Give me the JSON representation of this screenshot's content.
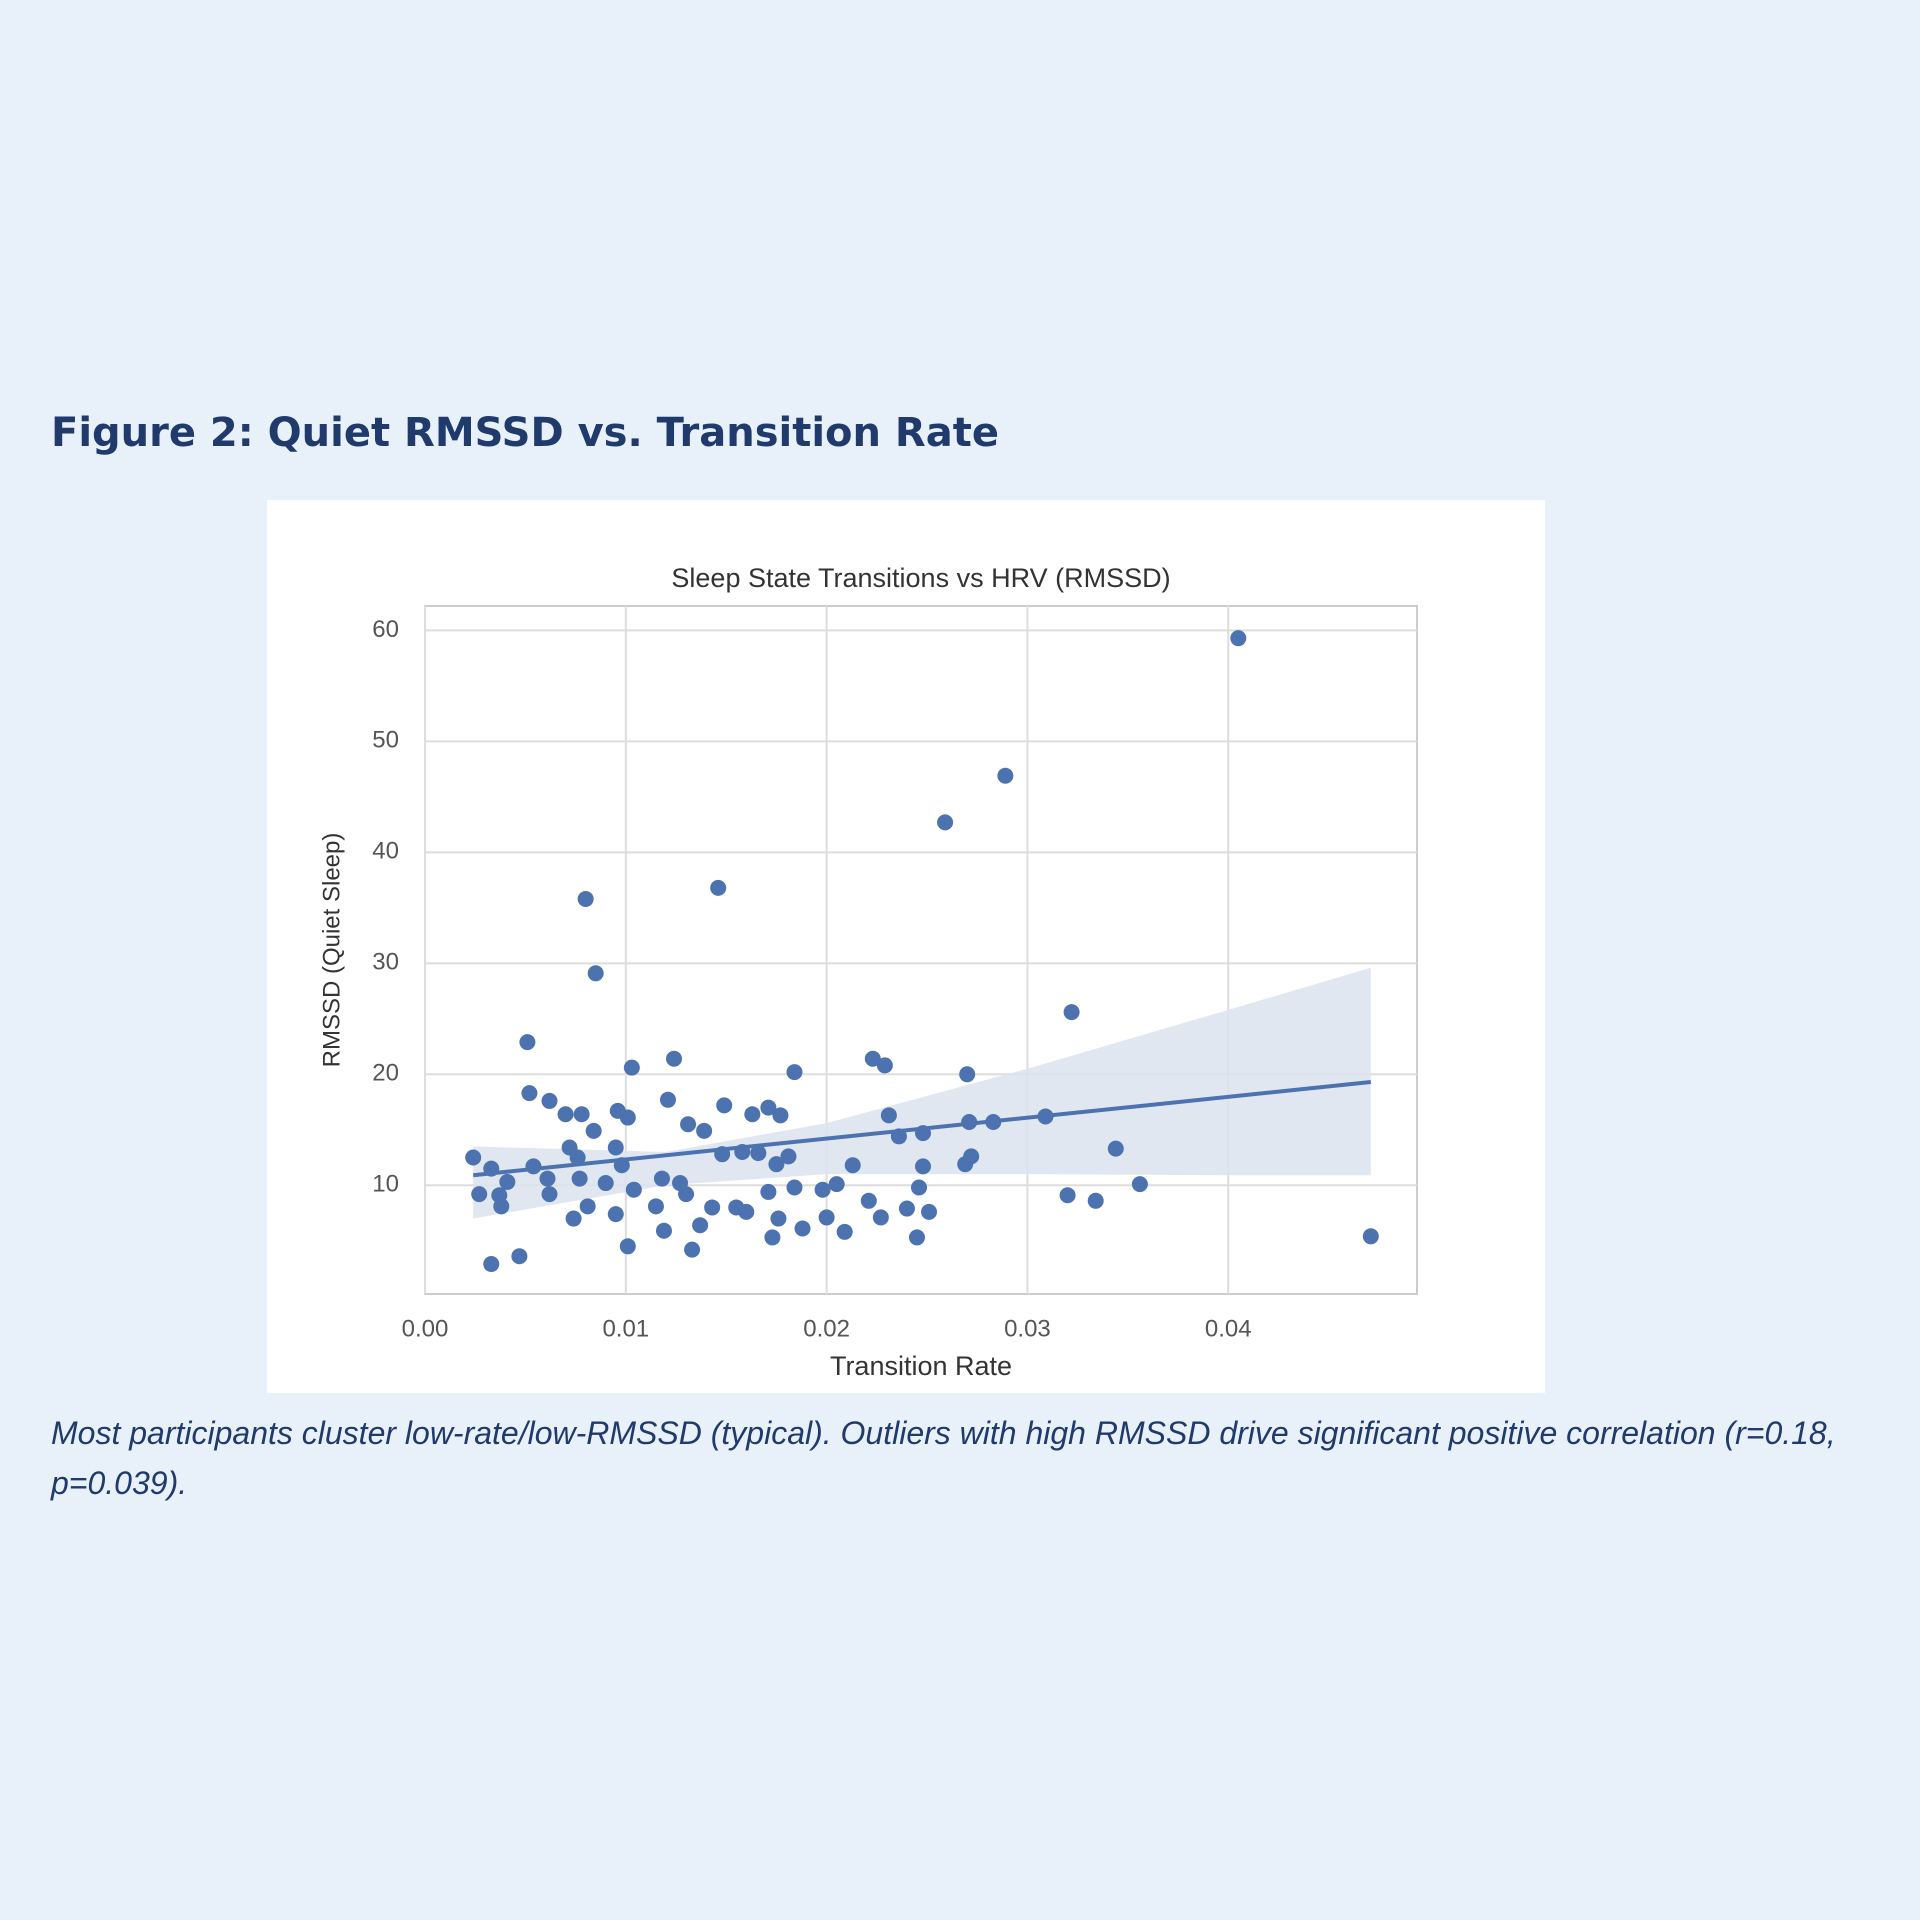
{
  "heading": "Figure 2: Quiet RMSSD vs. Transition Rate",
  "caption": "Most participants cluster low-rate/low-RMSSD (typical). Outliers with high RMSSD drive significant positive correlation (r=0.18, p=0.039).",
  "chart_data": {
    "type": "scatter",
    "title": "Sleep State Transitions vs HRV (RMSSD)",
    "x_label": "Transition Rate",
    "y_label": "RMSSD (Quiet Sleep)",
    "color": "#4c72b0",
    "grid": true,
    "xlim": [
      0,
      0.0494
    ],
    "ylim": [
      0.2,
      62.2
    ],
    "xticks": [
      {
        "value": 0,
        "label": "0.00"
      },
      0.01,
      0.02,
      0.03,
      0.04
    ],
    "yticks": [
      10,
      20,
      30,
      40,
      50,
      60
    ],
    "x": [
      0.0405,
      0.0289,
      0.0259,
      0.0146,
      0.008,
      0.0085,
      0.0322,
      0.0051,
      0.0124,
      0.0223,
      0.0229,
      0.0103,
      0.0184,
      0.027,
      0.0052,
      0.0062,
      0.0121,
      0.0149,
      0.007,
      0.0078,
      0.0096,
      0.0101,
      0.0163,
      0.0171,
      0.0177,
      0.0231,
      0.0271,
      0.0283,
      0.0309,
      0.0084,
      0.0131,
      0.0139,
      0.0236,
      0.0248,
      0.0072,
      0.0095,
      0.0344,
      0.0024,
      0.0076,
      0.0148,
      0.0158,
      0.0166,
      0.0181,
      0.0272,
      0.0033,
      0.0054,
      0.0098,
      0.0175,
      0.0213,
      0.0248,
      0.0269,
      0.0041,
      0.0061,
      0.0077,
      0.009,
      0.0118,
      0.0127,
      0.0205,
      0.0246,
      0.0356,
      0.0027,
      0.0037,
      0.0062,
      0.0104,
      0.013,
      0.0171,
      0.0184,
      0.0198,
      0.032,
      0.0334,
      0.0038,
      0.0081,
      0.0115,
      0.0143,
      0.0155,
      0.0221,
      0.024,
      0.0251,
      0.0074,
      0.0095,
      0.016,
      0.0176,
      0.02,
      0.0227,
      0.0119,
      0.0137,
      0.0188,
      0.0209,
      0.0245,
      0.0173,
      0.0471,
      0.0101,
      0.0133,
      0.0047,
      0.0033
    ],
    "y": [
      59.3,
      46.9,
      42.7,
      36.8,
      35.8,
      29.1,
      25.6,
      22.9,
      21.4,
      21.4,
      20.8,
      20.6,
      20.2,
      20.0,
      18.3,
      17.6,
      17.7,
      17.2,
      16.4,
      16.4,
      16.7,
      16.1,
      16.4,
      17.0,
      16.3,
      16.3,
      15.7,
      15.7,
      16.2,
      14.9,
      15.5,
      14.9,
      14.4,
      14.7,
      13.4,
      13.4,
      13.3,
      12.5,
      12.5,
      12.8,
      13.0,
      12.9,
      12.6,
      12.6,
      11.5,
      11.7,
      11.8,
      11.9,
      11.8,
      11.7,
      11.9,
      10.3,
      10.6,
      10.6,
      10.2,
      10.6,
      10.2,
      10.1,
      9.8,
      10.1,
      9.2,
      9.1,
      9.2,
      9.6,
      9.2,
      9.4,
      9.8,
      9.6,
      9.1,
      8.6,
      8.1,
      8.1,
      8.1,
      8.0,
      8.0,
      8.6,
      7.9,
      7.6,
      7.0,
      7.4,
      7.6,
      7.0,
      7.1,
      7.1,
      5.9,
      6.4,
      6.1,
      5.8,
      5.3,
      5.3,
      5.4,
      4.5,
      4.2,
      3.6,
      2.9
    ],
    "fit": {
      "x": [
        0.0024,
        0.0471
      ],
      "y": [
        10.9,
        19.3
      ],
      "color": "#4c72b0"
    },
    "band": {
      "x": [
        0.0024,
        0.012,
        0.02,
        0.03,
        0.04,
        0.0471
      ],
      "upper": [
        13.5,
        13.0,
        15.6,
        20.5,
        25.8,
        29.6
      ],
      "lower": [
        7.0,
        10.0,
        11.0,
        11.0,
        10.9,
        10.9
      ],
      "color": "#dbe3ef"
    }
  }
}
